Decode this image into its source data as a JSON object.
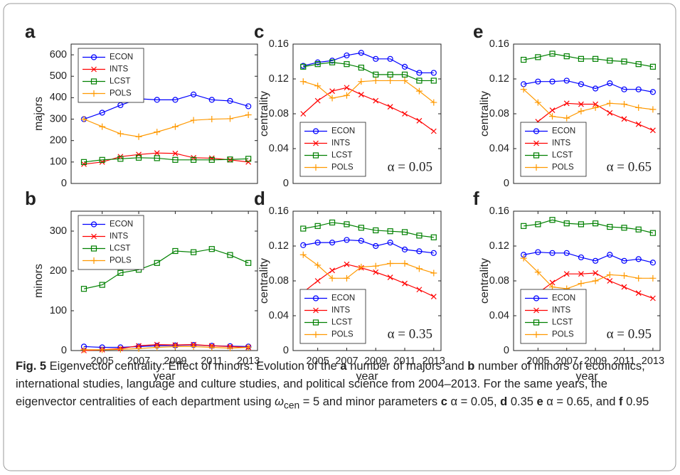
{
  "chart_data": [
    {
      "type": "line",
      "label": "a",
      "ylabel": "majors",
      "x": [
        2004,
        2005,
        2006,
        2007,
        2008,
        2009,
        2010,
        2011,
        2012,
        2013
      ],
      "xlim": [
        2003.3,
        2013.5
      ],
      "ylim": [
        0,
        650
      ],
      "yticks": [
        0,
        100,
        200,
        300,
        400,
        500,
        600
      ],
      "legend": "upper left",
      "series": [
        {
          "name": "ECON",
          "color": "#0000ff",
          "marker": "circle",
          "values": [
            300,
            330,
            365,
            395,
            390,
            390,
            415,
            390,
            385,
            360
          ]
        },
        {
          "name": "INTS",
          "color": "#ff0000",
          "marker": "x",
          "values": [
            90,
            100,
            125,
            135,
            142,
            140,
            120,
            118,
            110,
            100
          ]
        },
        {
          "name": "LCST",
          "color": "#008000",
          "marker": "square",
          "values": [
            100,
            110,
            115,
            120,
            118,
            110,
            110,
            110,
            112,
            115
          ]
        },
        {
          "name": "POLS",
          "color": "#ff9900",
          "marker": "plus",
          "values": [
            300,
            265,
            232,
            218,
            240,
            265,
            295,
            300,
            302,
            320
          ]
        }
      ]
    },
    {
      "type": "line",
      "label": "b",
      "ylabel": "minors",
      "xlabel": "year",
      "x": [
        2004,
        2005,
        2006,
        2007,
        2008,
        2009,
        2010,
        2011,
        2012,
        2013
      ],
      "xlim": [
        2003.3,
        2013.5
      ],
      "xticks": [
        2005,
        2007,
        2009,
        2011,
        2013
      ],
      "ylim": [
        0,
        350
      ],
      "yticks": [
        0,
        100,
        200,
        300
      ],
      "legend": "upper left",
      "series": [
        {
          "name": "ECON",
          "color": "#0000ff",
          "marker": "circle",
          "values": [
            10,
            8,
            8,
            10,
            12,
            13,
            14,
            12,
            11,
            10
          ]
        },
        {
          "name": "INTS",
          "color": "#ff0000",
          "marker": "x",
          "values": [
            0,
            2,
            5,
            12,
            15,
            14,
            15,
            12,
            10,
            8
          ]
        },
        {
          "name": "LCST",
          "color": "#008000",
          "marker": "square",
          "values": [
            155,
            165,
            195,
            203,
            220,
            250,
            247,
            255,
            240,
            220
          ]
        },
        {
          "name": "POLS",
          "color": "#ff9900",
          "marker": "plus",
          "values": [
            2,
            2,
            3,
            5,
            8,
            10,
            10,
            8,
            6,
            8
          ]
        }
      ]
    },
    {
      "type": "line",
      "label": "c",
      "ylabel": "centrality",
      "annotation": "α = 0.05",
      "x": [
        2004,
        2005,
        2006,
        2007,
        2008,
        2009,
        2010,
        2011,
        2012,
        2013
      ],
      "xlim": [
        2003.3,
        2013.5
      ],
      "ylim": [
        0,
        0.16
      ],
      "yticks": [
        0,
        0.04,
        0.08,
        0.12,
        0.16
      ],
      "legend": "lower left",
      "series": [
        {
          "name": "ECON",
          "color": "#0000ff",
          "marker": "circle",
          "values": [
            0.135,
            0.139,
            0.141,
            0.147,
            0.15,
            0.143,
            0.143,
            0.134,
            0.127,
            0.127
          ]
        },
        {
          "name": "INTS",
          "color": "#ff0000",
          "marker": "x",
          "values": [
            0.08,
            0.095,
            0.106,
            0.11,
            0.102,
            0.095,
            0.088,
            0.08,
            0.072,
            0.06
          ]
        },
        {
          "name": "LCST",
          "color": "#008000",
          "marker": "square",
          "values": [
            0.134,
            0.137,
            0.139,
            0.137,
            0.133,
            0.125,
            0.125,
            0.125,
            0.118,
            0.118
          ]
        },
        {
          "name": "POLS",
          "color": "#ff9900",
          "marker": "plus",
          "values": [
            0.117,
            0.112,
            0.098,
            0.101,
            0.117,
            0.118,
            0.118,
            0.118,
            0.106,
            0.093
          ]
        }
      ]
    },
    {
      "type": "line",
      "label": "d",
      "ylabel": "centrality",
      "xlabel": "year",
      "annotation": "α = 0.35",
      "x": [
        2004,
        2005,
        2006,
        2007,
        2008,
        2009,
        2010,
        2011,
        2012,
        2013
      ],
      "xlim": [
        2003.3,
        2013.5
      ],
      "xticks": [
        2005,
        2007,
        2009,
        2011,
        2013
      ],
      "ylim": [
        0,
        0.16
      ],
      "yticks": [
        0,
        0.04,
        0.08,
        0.12,
        0.16
      ],
      "legend": "lower left",
      "series": [
        {
          "name": "ECON",
          "color": "#0000ff",
          "marker": "circle",
          "values": [
            0.121,
            0.124,
            0.124,
            0.127,
            0.126,
            0.12,
            0.124,
            0.116,
            0.114,
            0.112
          ]
        },
        {
          "name": "INTS",
          "color": "#ff0000",
          "marker": "x",
          "values": [
            0.067,
            0.08,
            0.092,
            0.099,
            0.095,
            0.09,
            0.084,
            0.077,
            0.07,
            0.062
          ]
        },
        {
          "name": "LCST",
          "color": "#008000",
          "marker": "square",
          "values": [
            0.14,
            0.143,
            0.147,
            0.145,
            0.141,
            0.138,
            0.137,
            0.136,
            0.132,
            0.13
          ]
        },
        {
          "name": "POLS",
          "color": "#ff9900",
          "marker": "plus",
          "values": [
            0.11,
            0.098,
            0.083,
            0.083,
            0.096,
            0.097,
            0.1,
            0.1,
            0.094,
            0.089
          ]
        }
      ]
    },
    {
      "type": "line",
      "label": "e",
      "ylabel": "centrality",
      "annotation": "α = 0.65",
      "x": [
        2004,
        2005,
        2006,
        2007,
        2008,
        2009,
        2010,
        2011,
        2012,
        2013
      ],
      "xlim": [
        2003.3,
        2013.5
      ],
      "ylim": [
        0,
        0.16
      ],
      "yticks": [
        0,
        0.04,
        0.08,
        0.12,
        0.16
      ],
      "legend": "lower left",
      "series": [
        {
          "name": "ECON",
          "color": "#0000ff",
          "marker": "circle",
          "values": [
            0.114,
            0.117,
            0.117,
            0.118,
            0.114,
            0.109,
            0.115,
            0.108,
            0.108,
            0.105
          ]
        },
        {
          "name": "INTS",
          "color": "#ff0000",
          "marker": "x",
          "values": [
            0.06,
            0.071,
            0.084,
            0.092,
            0.091,
            0.091,
            0.081,
            0.074,
            0.068,
            0.061
          ]
        },
        {
          "name": "LCST",
          "color": "#008000",
          "marker": "square",
          "values": [
            0.142,
            0.145,
            0.149,
            0.146,
            0.143,
            0.143,
            0.141,
            0.14,
            0.137,
            0.134
          ]
        },
        {
          "name": "POLS",
          "color": "#ff9900",
          "marker": "plus",
          "values": [
            0.108,
            0.093,
            0.077,
            0.075,
            0.083,
            0.087,
            0.092,
            0.091,
            0.087,
            0.085
          ]
        }
      ]
    },
    {
      "type": "line",
      "label": "f",
      "ylabel": "centrality",
      "xlabel": "year",
      "annotation": "α = 0.95",
      "x": [
        2004,
        2005,
        2006,
        2007,
        2008,
        2009,
        2010,
        2011,
        2012,
        2013
      ],
      "xlim": [
        2003.3,
        2013.5
      ],
      "xticks": [
        2005,
        2007,
        2009,
        2011,
        2013
      ],
      "ylim": [
        0,
        0.16
      ],
      "yticks": [
        0,
        0.04,
        0.08,
        0.12,
        0.16
      ],
      "legend": "lower left",
      "series": [
        {
          "name": "ECON",
          "color": "#0000ff",
          "marker": "circle",
          "values": [
            0.11,
            0.113,
            0.112,
            0.112,
            0.107,
            0.103,
            0.11,
            0.103,
            0.105,
            0.101
          ]
        },
        {
          "name": "INTS",
          "color": "#ff0000",
          "marker": "x",
          "values": [
            0.055,
            0.066,
            0.078,
            0.088,
            0.088,
            0.089,
            0.08,
            0.073,
            0.066,
            0.06
          ]
        },
        {
          "name": "LCST",
          "color": "#008000",
          "marker": "square",
          "values": [
            0.143,
            0.145,
            0.15,
            0.146,
            0.145,
            0.146,
            0.142,
            0.141,
            0.139,
            0.135
          ]
        },
        {
          "name": "POLS",
          "color": "#ff9900",
          "marker": "plus",
          "values": [
            0.106,
            0.09,
            0.073,
            0.071,
            0.077,
            0.08,
            0.087,
            0.086,
            0.083,
            0.083
          ]
        }
      ]
    }
  ],
  "caption": [
    "Fig. 5",
    " Eigenvector centrality: Effect of minors. Evolution of the ",
    "a",
    " number of majors and ",
    "b",
    " number of minors of economics, international studies, language and culture studies, and political science from 2004–2013. For the same years, the eigenvector centralities of each department using ",
    "ω",
    "cen",
    " = 5 and minor parameters ",
    "c",
    " α = 0.05, ",
    "d",
    " 0.35 ",
    "e",
    " α = 0.65, and ",
    "f",
    " 0.95"
  ]
}
